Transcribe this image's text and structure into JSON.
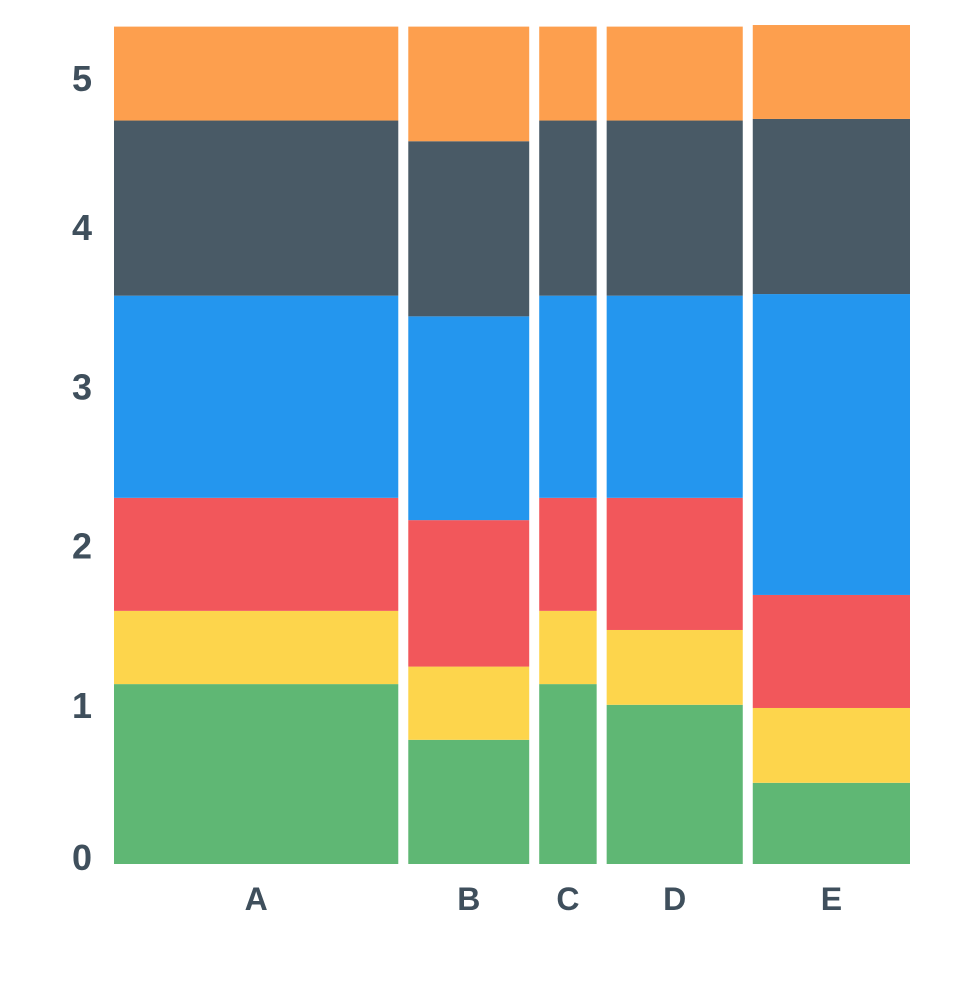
{
  "chart_data": {
    "type": "bar",
    "variant": "marimekko-stacked",
    "title": "",
    "xlabel": "",
    "ylabel": "",
    "ylim": [
      0,
      5
    ],
    "yticks": [
      "0",
      "1",
      "2",
      "3",
      "4",
      "5"
    ],
    "grid": false,
    "legend": "none",
    "categories": [
      {
        "label": "A",
        "width_share": 0.3672
      },
      {
        "label": "B",
        "width_share": 0.1562
      },
      {
        "label": "C",
        "width_share": 0.0742
      },
      {
        "label": "D",
        "width_share": 0.1758
      },
      {
        "label": "E",
        "width_share": 0.2031
      }
    ],
    "series": [
      {
        "color": "#5fb774",
        "values": [
          1.13,
          0.78,
          1.13,
          1.0,
          0.51
        ]
      },
      {
        "color": "#fdd54c",
        "values": [
          0.46,
          0.46,
          0.46,
          0.47,
          0.47
        ]
      },
      {
        "color": "#f2575b",
        "values": [
          0.71,
          0.92,
          0.71,
          0.83,
          0.71
        ]
      },
      {
        "color": "#2496ee",
        "values": [
          1.27,
          1.28,
          1.27,
          1.27,
          1.89
        ]
      },
      {
        "color": "#495a66",
        "values": [
          1.1,
          1.1,
          1.1,
          1.1,
          1.1
        ]
      },
      {
        "color": "#fd9f4e",
        "values": [
          0.59,
          0.72,
          0.59,
          0.59,
          0.59
        ]
      }
    ]
  }
}
